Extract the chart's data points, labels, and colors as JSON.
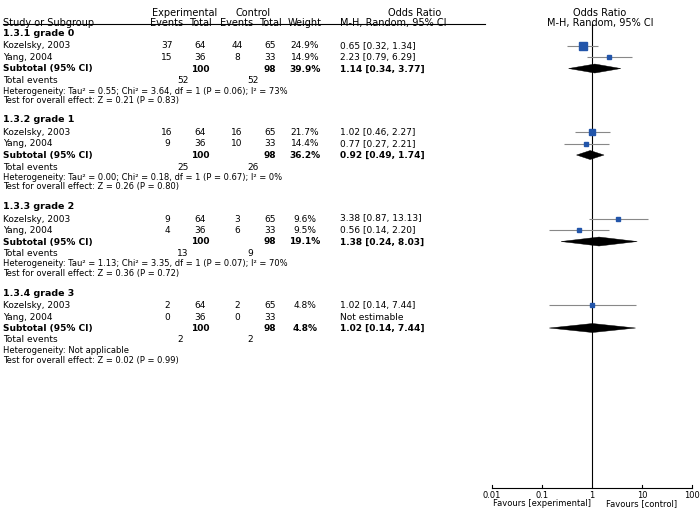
{
  "col_headers_exp": "Experimental",
  "col_headers_ctrl": "Control",
  "col_headers_or1": "Odds Ratio",
  "col_headers_or2": "Odds Ratio",
  "col_subheaders": [
    "Study or Subgroup",
    "Events",
    "Total",
    "Events",
    "Total",
    "Weight",
    "M-H, Random, 95% CI",
    "M-H, Random, 95% CI"
  ],
  "subgroups": [
    {
      "label": "1.3.1 grade 0",
      "studies": [
        {
          "name": "Kozelsky, 2003",
          "exp_events": 37,
          "exp_total": 64,
          "ctrl_events": 44,
          "ctrl_total": 65,
          "weight": "24.9%",
          "or": 0.65,
          "ci_low": 0.32,
          "ci_high": 1.34,
          "or_text": "0.65 [0.32, 1.34]"
        },
        {
          "name": "Yang, 2004",
          "exp_events": 15,
          "exp_total": 36,
          "ctrl_events": 8,
          "ctrl_total": 33,
          "weight": "14.9%",
          "or": 2.23,
          "ci_low": 0.79,
          "ci_high": 6.29,
          "or_text": "2.23 [0.79, 6.29]"
        }
      ],
      "subtotal": {
        "exp_total": 100,
        "ctrl_total": 98,
        "weight": "39.9%",
        "or": 1.14,
        "ci_low": 0.34,
        "ci_high": 3.77,
        "or_text": "1.14 [0.34, 3.77]"
      },
      "total_events_exp": 52,
      "total_events_ctrl": 52,
      "heterogeneity": "Heterogeneity: Tau² = 0.55; Chi² = 3.64, df = 1 (P = 0.06); I² = 73%",
      "overall": "Test for overall effect: Z = 0.21 (P = 0.83)"
    },
    {
      "label": "1.3.2 grade 1",
      "studies": [
        {
          "name": "Kozelsky, 2003",
          "exp_events": 16,
          "exp_total": 64,
          "ctrl_events": 16,
          "ctrl_total": 65,
          "weight": "21.7%",
          "or": 1.02,
          "ci_low": 0.46,
          "ci_high": 2.27,
          "or_text": "1.02 [0.46, 2.27]"
        },
        {
          "name": "Yang, 2004",
          "exp_events": 9,
          "exp_total": 36,
          "ctrl_events": 10,
          "ctrl_total": 33,
          "weight": "14.4%",
          "or": 0.77,
          "ci_low": 0.27,
          "ci_high": 2.21,
          "or_text": "0.77 [0.27, 2.21]"
        }
      ],
      "subtotal": {
        "exp_total": 100,
        "ctrl_total": 98,
        "weight": "36.2%",
        "or": 0.92,
        "ci_low": 0.49,
        "ci_high": 1.74,
        "or_text": "0.92 [0.49, 1.74]"
      },
      "total_events_exp": 25,
      "total_events_ctrl": 26,
      "heterogeneity": "Heterogeneity: Tau² = 0.00; Chi² = 0.18, df = 1 (P = 0.67); I² = 0%",
      "overall": "Test for overall effect: Z = 0.26 (P = 0.80)"
    },
    {
      "label": "1.3.3 grade 2",
      "studies": [
        {
          "name": "Kozelsky, 2003",
          "exp_events": 9,
          "exp_total": 64,
          "ctrl_events": 3,
          "ctrl_total": 65,
          "weight": "9.6%",
          "or": 3.38,
          "ci_low": 0.87,
          "ci_high": 13.13,
          "or_text": "3.38 [0.87, 13.13]"
        },
        {
          "name": "Yang, 2004",
          "exp_events": 4,
          "exp_total": 36,
          "ctrl_events": 6,
          "ctrl_total": 33,
          "weight": "9.5%",
          "or": 0.56,
          "ci_low": 0.14,
          "ci_high": 2.2,
          "or_text": "0.56 [0.14, 2.20]"
        }
      ],
      "subtotal": {
        "exp_total": 100,
        "ctrl_total": 98,
        "weight": "19.1%",
        "or": 1.38,
        "ci_low": 0.24,
        "ci_high": 8.03,
        "or_text": "1.38 [0.24, 8.03]"
      },
      "total_events_exp": 13,
      "total_events_ctrl": 9,
      "heterogeneity": "Heterogeneity: Tau² = 1.13; Chi² = 3.35, df = 1 (P = 0.07); I² = 70%",
      "overall": "Test for overall effect: Z = 0.36 (P = 0.72)"
    },
    {
      "label": "1.3.4 grade 3",
      "studies": [
        {
          "name": "Kozelsky, 2003",
          "exp_events": 2,
          "exp_total": 64,
          "ctrl_events": 2,
          "ctrl_total": 65,
          "weight": "4.8%",
          "or": 1.02,
          "ci_low": 0.14,
          "ci_high": 7.44,
          "or_text": "1.02 [0.14, 7.44]"
        },
        {
          "name": "Yang, 2004",
          "exp_events": 0,
          "exp_total": 36,
          "ctrl_events": 0,
          "ctrl_total": 33,
          "weight": "",
          "or": null,
          "ci_low": null,
          "ci_high": null,
          "or_text": "Not estimable"
        }
      ],
      "subtotal": {
        "exp_total": 100,
        "ctrl_total": 98,
        "weight": "4.8%",
        "or": 1.02,
        "ci_low": 0.14,
        "ci_high": 7.44,
        "or_text": "1.02 [0.14, 7.44]"
      },
      "total_events_exp": 2,
      "total_events_ctrl": 2,
      "heterogeneity": "Heterogeneity: Not applicable",
      "overall": "Test for overall effect: Z = 0.02 (P = 0.99)"
    }
  ],
  "axis_ticks": [
    0.01,
    0.1,
    1,
    10,
    100
  ],
  "axis_tick_labels": [
    "0.01",
    "0.1",
    "1",
    "10",
    "100"
  ],
  "axis_label_left": "Favours [experimental]",
  "axis_label_right": "Favours [control]",
  "forest_log_min": -2,
  "forest_log_max": 2,
  "study_color": "#2255aa",
  "line_color": "#888888",
  "fs_header": 7.0,
  "fs_body": 6.5,
  "fs_bold_subgroup": 6.8,
  "fs_small": 6.0
}
